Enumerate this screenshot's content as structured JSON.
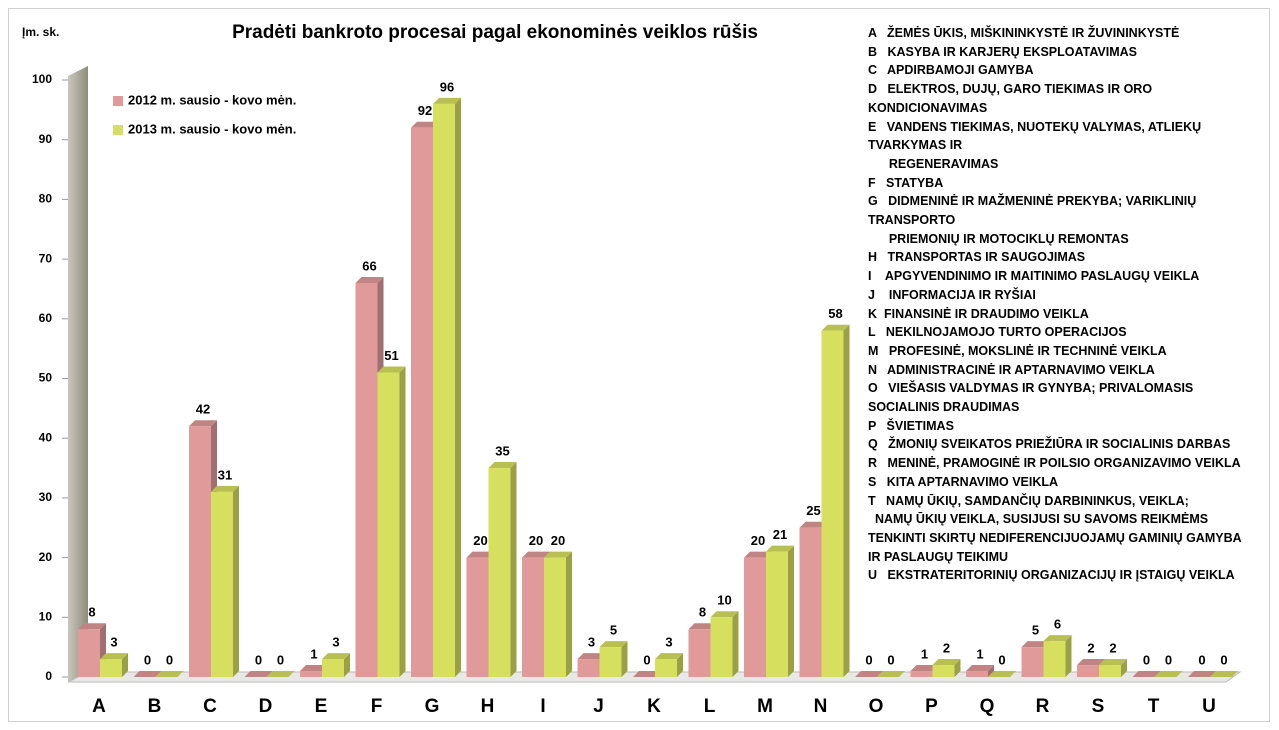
{
  "chart_data": {
    "type": "bar3d",
    "title": "Pradėti bankroto procesai pagal ekonominės veiklos rūšis",
    "y_label": "Įm. sk.",
    "categories": [
      "A",
      "B",
      "C",
      "D",
      "E",
      "F",
      "G",
      "H",
      "I",
      "J",
      "K",
      "L",
      "M",
      "N",
      "O",
      "P",
      "Q",
      "R",
      "S",
      "T",
      "U"
    ],
    "series": [
      {
        "name": "2012 m. sausio - kovo mėn.",
        "color": "#e09a9a",
        "values": [
          8,
          0,
          42,
          0,
          1,
          66,
          92,
          20,
          20,
          3,
          0,
          8,
          20,
          25,
          0,
          1,
          1,
          5,
          2,
          0,
          0
        ]
      },
      {
        "name": "2013 m. sausio - kovo mėn.",
        "color": "#d6df5e",
        "values": [
          3,
          0,
          31,
          0,
          3,
          51,
          96,
          35,
          20,
          5,
          3,
          10,
          21,
          58,
          0,
          2,
          0,
          6,
          2,
          0,
          0
        ]
      }
    ],
    "ylim": [
      0,
      100
    ],
    "yticks": [
      0,
      10,
      20,
      30,
      40,
      50,
      60,
      70,
      80,
      90,
      100
    ],
    "legend": "top-left",
    "notes": [
      "A   ŽEMĖS ŪKIS, MIŠKININKYSTĖ IR ŽUVININKYSTĖ",
      "B   KASYBA IR KARJERŲ EKSPLOATAVIMAS",
      "C   APDIRBAMOJI GAMYBA",
      "D   ELEKTROS, DUJŲ, GARO TIEKIMAS IR ORO",
      "KONDICIONAVIMAS",
      "E   VANDENS TIEKIMAS, NUOTEKŲ VALYMAS, ATLIEKŲ",
      "TVARKYMAS IR",
      "      REGENERAVIMAS",
      "F   STATYBA",
      "G   DIDMENINĖ IR MAŽMENINĖ PREKYBA; VARIKLINIŲ",
      "TRANSPORTO",
      "      PRIEMONIŲ IR MOTOCIKLŲ REMONTAS",
      "H   TRANSPORTAS IR SAUGOJIMAS",
      "I    APGYVENDINIMO IR MAITINIMO PASLAUGŲ VEIKLA",
      "J    INFORMACIJA IR RYŠIAI",
      "K  FINANSINĖ IR DRAUDIMO VEIKLA",
      "L   NEKILNOJAMOJO TURTO OPERACIJOS",
      "M   PROFESINĖ, MOKSLINĖ IR TECHNINĖ VEIKLA",
      "N   ADMINISTRACINĖ IR APTARNAVIMO VEIKLA",
      "O   VIEŠASIS VALDYMAS IR GYNYBA; PRIVALOMASIS",
      "SOCIALINIS DRAUDIMAS",
      "P   ŠVIETIMAS",
      "Q   ŽMONIŲ SVEIKATOS PRIEŽIŪRA IR SOCIALINIS DARBAS",
      "R   MENINĖ, PRAMOGINĖ IR POILSIO ORGANIZAVIMO VEIKLA",
      "S   KITA APTARNAVIMO VEIKLA",
      "T   NAMŲ ŪKIŲ, SAMDANČIŲ DARBININKUS, VEIKLA;",
      "  NAMŲ ŪKIŲ VEIKLA, SUSIJUSI SU SAVOMS REIKMĖMS",
      "TENKINTI SKIRTŲ NEDIFERENCIJUOJAMŲ GAMINIŲ GAMYBA",
      "IR PASLAUGŲ TEIKIMU",
      "U   EKSTRATERITORINIŲ ORGANIZACIJŲ IR ĮSTAIGŲ VEIKLA"
    ]
  }
}
